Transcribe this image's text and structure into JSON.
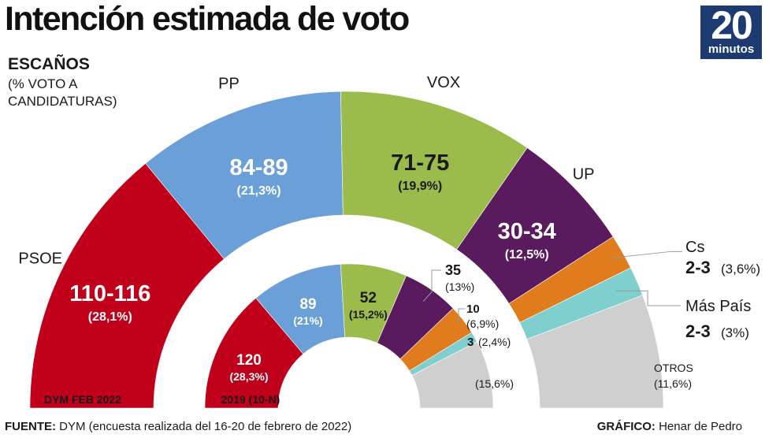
{
  "title": "Intención estimada de voto",
  "logo": {
    "number": "20",
    "text": "minutos"
  },
  "legend_title": "ESCAÑOS",
  "legend_subtitle": "(% VOTO A CANDIDATURAS)",
  "footer": {
    "source_label": "FUENTE:",
    "source_text": "DYM (encuesta realizada del 16-20 de febrero de 2022)",
    "credit_label": "GRÁFICO:",
    "credit_text": "Henar de Pedro"
  },
  "colors": {
    "PSOE": "#c0001a",
    "PP": "#6a9fd8",
    "VOX": "#9bbb4c",
    "UP": "#5a1a5e",
    "Cs": "#e07b1e",
    "Más País": "#7fcfcf",
    "OTROS": "#cfcfcf"
  },
  "chart_data": [
    {
      "type": "pie",
      "subtype": "hemicycle",
      "label": "DYM FEB 2022",
      "categories": [
        "PSOE",
        "PP",
        "VOX",
        "UP",
        "Cs",
        "Más País",
        "OTROS"
      ],
      "seats": [
        "110-116",
        "84-89",
        "71-75",
        "30-34",
        "2-3",
        "2-3",
        ""
      ],
      "values": [
        28.1,
        21.3,
        19.9,
        12.5,
        3.6,
        3.0,
        11.6
      ],
      "percent_labels": [
        "(28,1%)",
        "(21,3%)",
        "(19,9%)",
        "(12,5%)",
        "(3,6%)",
        "(3%)",
        "(11,6%)"
      ]
    },
    {
      "type": "pie",
      "subtype": "hemicycle",
      "label": "2019 (10-N)",
      "categories": [
        "PSOE",
        "PP",
        "VOX",
        "UP",
        "Cs",
        "Más País",
        "OTROS"
      ],
      "seats": [
        "120",
        "89",
        "52",
        "35",
        "10",
        "3",
        ""
      ],
      "values": [
        28.3,
        21.0,
        15.2,
        13.0,
        6.9,
        2.4,
        15.6
      ],
      "percent_labels": [
        "(28,3%)",
        "(21%)",
        "(15,2%)",
        "(13%)",
        "(6,9%)",
        "(2,4%)",
        "(15,6%)"
      ]
    }
  ]
}
